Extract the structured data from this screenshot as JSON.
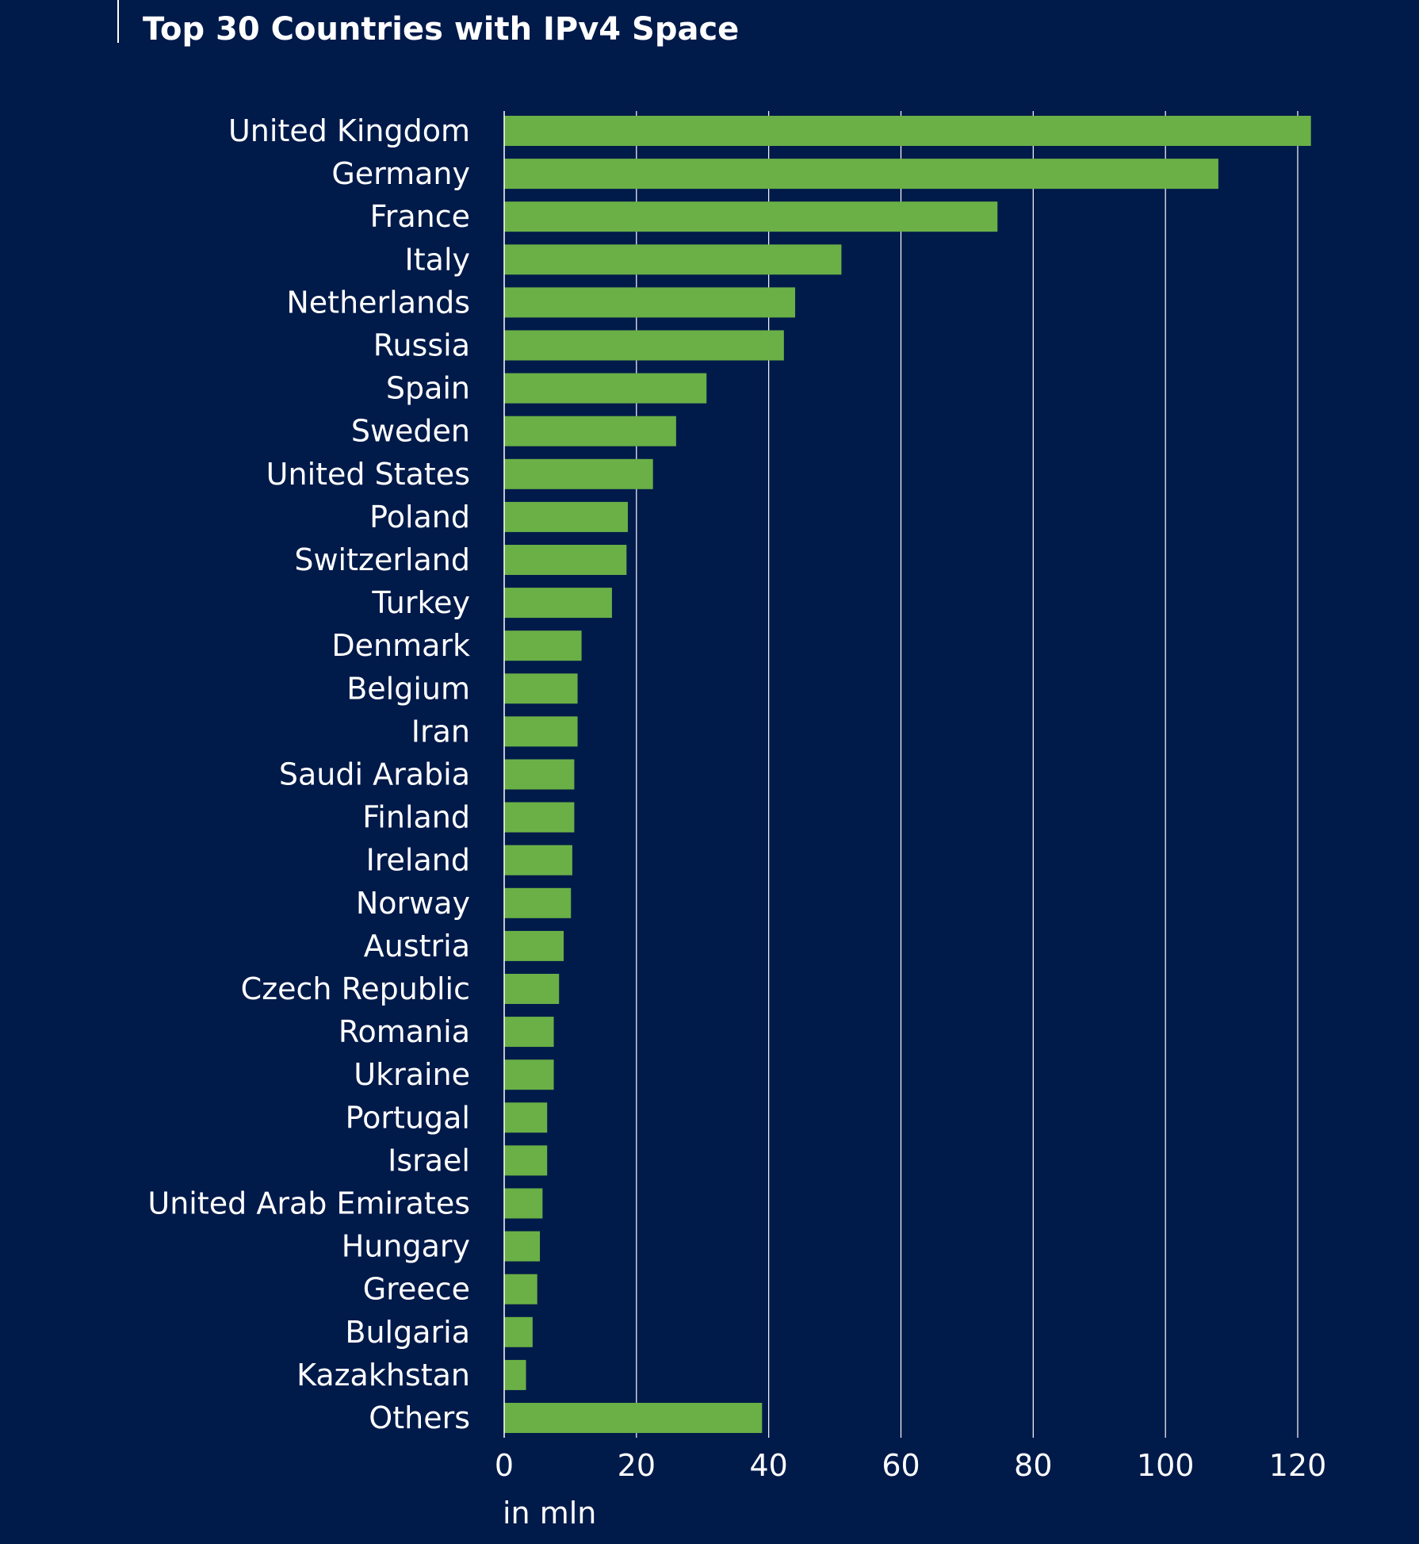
{
  "chart_data": {
    "type": "bar",
    "orientation": "horizontal",
    "title": "Top 30 Countries with IPv4 Space",
    "xlabel": "in mln",
    "xlim": [
      0,
      125
    ],
    "xticks": [
      0,
      20,
      40,
      60,
      80,
      100,
      120
    ],
    "grid": true,
    "bar_color": "#6ab046",
    "categories": [
      "United Kingdom",
      "Germany",
      "France",
      "Italy",
      "Netherlands",
      "Russia",
      "Spain",
      "Sweden",
      "United States",
      "Poland",
      "Switzerland",
      "Turkey",
      "Denmark",
      "Belgium",
      "Iran",
      "Saudi Arabia",
      "Finland",
      "Ireland",
      "Norway",
      "Austria",
      "Czech Republic",
      "Romania",
      "Ukraine",
      "Portugal",
      "Israel",
      "United Arab Emirates",
      "Hungary",
      "Greece",
      "Bulgaria",
      "Kazakhstan",
      "Others"
    ],
    "values": [
      122,
      108,
      74.6,
      51,
      44,
      42.3,
      30.6,
      26,
      22.5,
      18.7,
      18.5,
      16.3,
      11.7,
      11.1,
      11.1,
      10.6,
      10.6,
      10.3,
      10.1,
      9,
      8.3,
      7.5,
      7.5,
      6.5,
      6.5,
      5.8,
      5.4,
      5,
      4.3,
      3.3,
      39
    ]
  }
}
